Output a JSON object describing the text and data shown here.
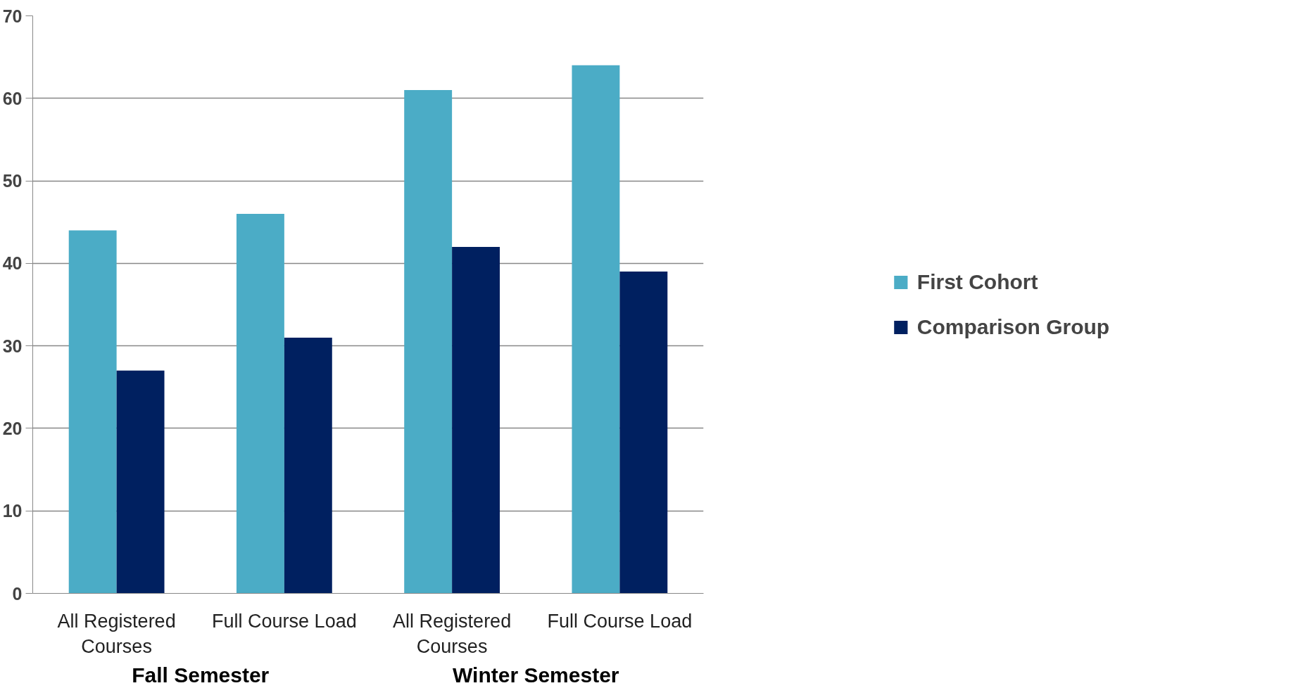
{
  "chart_data": {
    "type": "bar",
    "categories": [
      "All Registered Courses",
      "Full Course Load",
      "All Registered Courses",
      "Full Course Load"
    ],
    "series": [
      {
        "name": "First Cohort",
        "color": "#4bacc6",
        "values": [
          44,
          46,
          61,
          64
        ]
      },
      {
        "name": "Comparison Group",
        "color": "#002060",
        "values": [
          27,
          31,
          42,
          39
        ]
      }
    ],
    "annotations": [
      "Fall Semester",
      "Winter Semester"
    ],
    "ylim": [
      0,
      70
    ],
    "yticks": [
      0,
      10,
      20,
      30,
      40,
      50,
      60,
      70
    ],
    "grid": "y",
    "legend": "right"
  }
}
